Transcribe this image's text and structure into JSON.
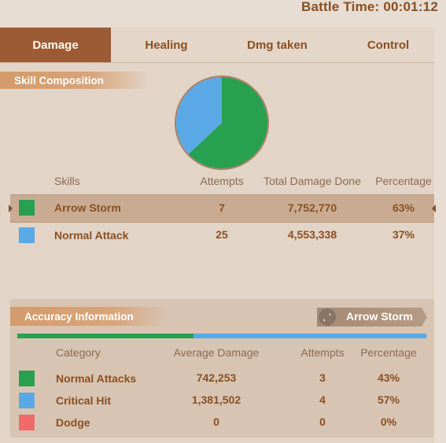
{
  "battle_time": "Battle Time: 00:01:12",
  "tabs": [
    "Damage",
    "Healing",
    "Dmg taken",
    "Control"
  ],
  "skill_section": {
    "title": "Skill Composition",
    "headers": [
      "Skills",
      "Attempts",
      "Total Damage Done",
      "Percentage"
    ],
    "rows": [
      {
        "color": "#27a050",
        "skill": "Arrow Storm",
        "attempts": "7",
        "damage": "7,752,770",
        "percentage": "63%"
      },
      {
        "color": "#5aa9e6",
        "skill": "Normal Attack",
        "attempts": "25",
        "damage": "4,553,338",
        "percentage": "37%"
      }
    ]
  },
  "chart_data": {
    "type": "pie",
    "categories": [
      "Arrow Storm",
      "Normal Attack"
    ],
    "values": [
      63,
      37
    ],
    "colors": [
      "#27a050",
      "#5aa9e6"
    ]
  },
  "accuracy_section": {
    "title": "Accuracy Information",
    "selected_skill": "Arrow Storm",
    "selected_skill_icon": "sword-icon",
    "bar_colors": [
      "#27a050",
      "#5aa9e6"
    ],
    "bar_green_fraction": 0.43,
    "headers": [
      "Category",
      "Average Damage",
      "Attempts",
      "Percentage"
    ],
    "rows": [
      {
        "color": "#27a050",
        "category": "Normal Attacks",
        "avg_damage": "742,253",
        "attempts": "3",
        "percentage": "43%"
      },
      {
        "color": "#5aa9e6",
        "category": "Critical Hit",
        "avg_damage": "1,381,502",
        "attempts": "4",
        "percentage": "57%"
      },
      {
        "color": "#f06a6a",
        "category": "Dodge",
        "avg_damage": "0",
        "attempts": "0",
        "percentage": "0%"
      }
    ]
  }
}
